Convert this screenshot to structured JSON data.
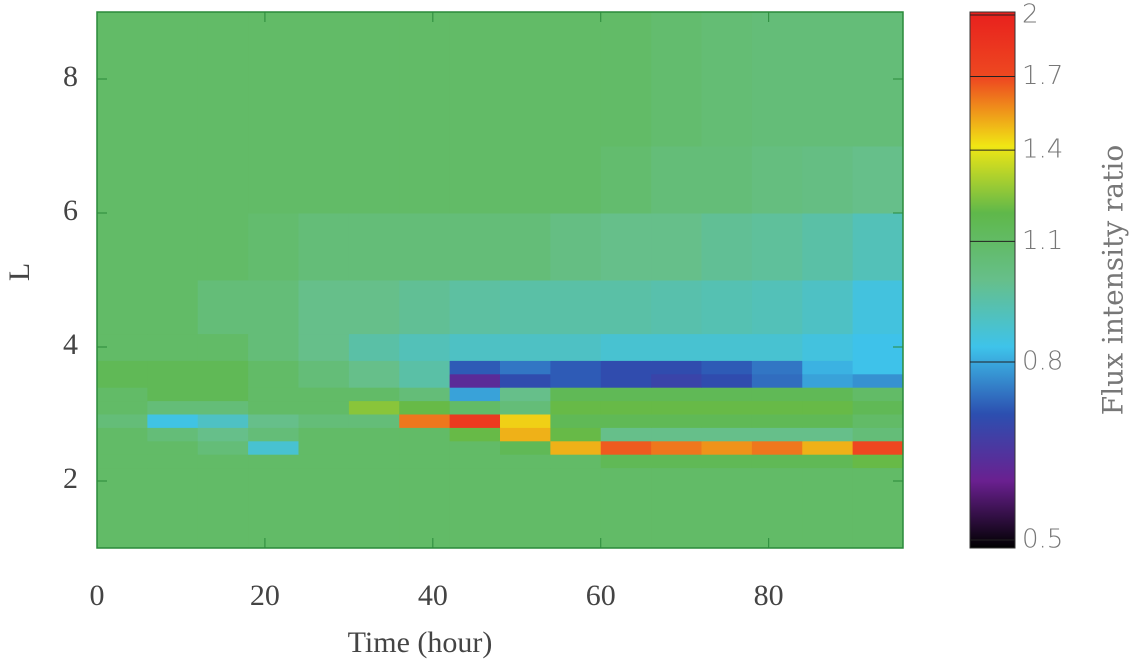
{
  "chart_data": {
    "type": "heatmap",
    "xlabel": "Time (hour)",
    "ylabel": "L",
    "x_edges": [
      0,
      6,
      12,
      18,
      24,
      30,
      36,
      42,
      48,
      54,
      60,
      66,
      72,
      78,
      84,
      90,
      96
    ],
    "y_edges": [
      1,
      2.2,
      2.4,
      2.6,
      2.8,
      3.0,
      3.2,
      3.4,
      3.6,
      3.8,
      4.2,
      5,
      6,
      7,
      9
    ],
    "values": [
      [
        1.1,
        1.1,
        1.1,
        1.1,
        1.1,
        1.1,
        1.1,
        1.1,
        1.1,
        1.1,
        1.1,
        1.1,
        1.1,
        1.1,
        1.1,
        1.1
      ],
      [
        1.1,
        1.1,
        1.1,
        1.1,
        1.1,
        1.1,
        1.1,
        1.1,
        1.1,
        1.1,
        1.15,
        1.15,
        1.15,
        1.15,
        1.15,
        1.2
      ],
      [
        1.1,
        1.1,
        1.05,
        0.88,
        1.1,
        1.1,
        1.1,
        1.1,
        1.15,
        1.5,
        1.65,
        1.6,
        1.55,
        1.6,
        1.5,
        1.7
      ],
      [
        1.1,
        1.05,
        1.0,
        1.05,
        1.1,
        1.1,
        1.1,
        1.2,
        1.5,
        1.2,
        1.0,
        1.0,
        1.0,
        1.0,
        1.0,
        1.05
      ],
      [
        1.05,
        0.85,
        0.9,
        1.0,
        1.05,
        1.05,
        1.6,
        1.8,
        1.45,
        1.15,
        1.15,
        1.15,
        1.15,
        1.15,
        1.15,
        1.1
      ],
      [
        1.1,
        1.05,
        1.05,
        1.1,
        1.1,
        1.25,
        1.2,
        1.1,
        1.05,
        1.2,
        1.2,
        1.2,
        1.2,
        1.2,
        1.2,
        1.15
      ],
      [
        1.1,
        1.15,
        1.15,
        1.1,
        1.1,
        1.1,
        1.05,
        0.8,
        1.0,
        1.15,
        1.15,
        1.15,
        1.15,
        1.15,
        1.15,
        1.1
      ],
      [
        1.15,
        1.15,
        1.15,
        1.1,
        1.05,
        1.0,
        0.95,
        0.62,
        0.7,
        0.72,
        0.7,
        0.68,
        0.7,
        0.74,
        0.8,
        0.78
      ],
      [
        1.15,
        1.15,
        1.15,
        1.1,
        1.05,
        1.0,
        0.95,
        0.72,
        0.75,
        0.72,
        0.7,
        0.7,
        0.72,
        0.75,
        0.82,
        0.84
      ],
      [
        1.1,
        1.1,
        1.1,
        1.05,
        1.0,
        0.95,
        0.92,
        0.9,
        0.9,
        0.9,
        0.88,
        0.88,
        0.88,
        0.88,
        0.86,
        0.84
      ],
      [
        1.1,
        1.1,
        1.05,
        1.05,
        1.0,
        1.0,
        0.98,
        0.96,
        0.95,
        0.95,
        0.95,
        0.94,
        0.93,
        0.92,
        0.9,
        0.86
      ],
      [
        1.1,
        1.1,
        1.1,
        1.08,
        1.05,
        1.05,
        1.05,
        1.05,
        1.05,
        1.02,
        1.0,
        1.0,
        0.98,
        0.97,
        0.95,
        0.92
      ],
      [
        1.1,
        1.1,
        1.1,
        1.1,
        1.1,
        1.1,
        1.1,
        1.1,
        1.1,
        1.1,
        1.08,
        1.05,
        1.05,
        1.03,
        1.02,
        1.0
      ],
      [
        1.1,
        1.1,
        1.1,
        1.1,
        1.1,
        1.1,
        1.1,
        1.1,
        1.1,
        1.1,
        1.1,
        1.08,
        1.06,
        1.05,
        1.05,
        1.05
      ]
    ],
    "xlim": [
      0,
      96
    ],
    "xticks": [
      0,
      20,
      40,
      60,
      80
    ],
    "ylim": [
      1,
      9
    ],
    "yticks": [
      2,
      4,
      6,
      8
    ],
    "colorbar": {
      "label": "Flux intensity ratio",
      "clim": [
        0.5,
        2.0
      ],
      "log": true,
      "ticks": [
        0.5,
        0.8,
        1.1,
        1.4,
        1.7,
        2.0
      ],
      "colormap": [
        "#000000",
        "#6a2090",
        "#2c4fb0",
        "#3ec3ea",
        "#66bf8a",
        "#5fb84a",
        "#f0e614",
        "#ee4a20",
        "#e8201e"
      ]
    }
  }
}
